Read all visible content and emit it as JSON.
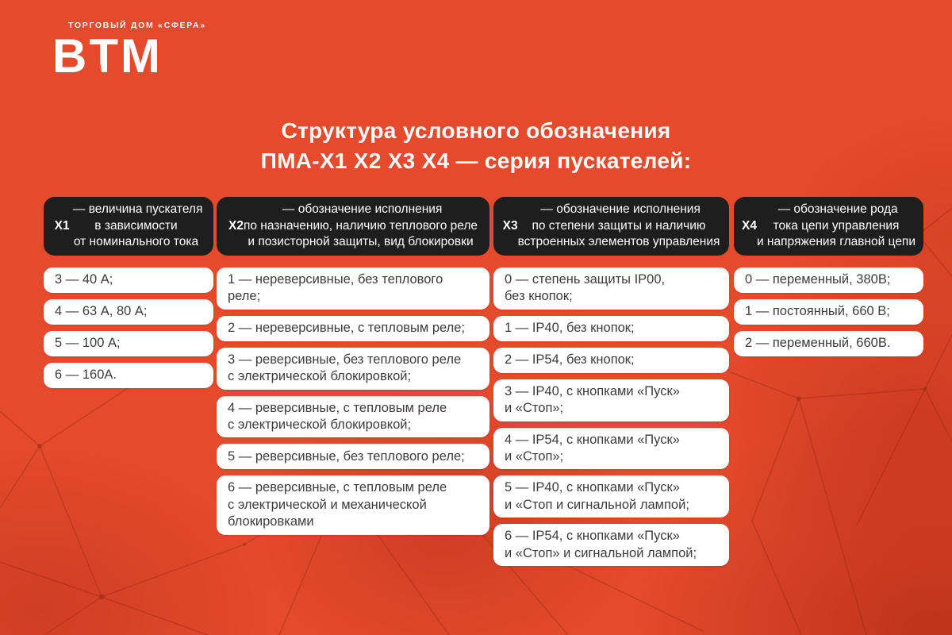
{
  "logo": {
    "tagline": "ТОРГОВЫЙ ДОМ «СФЕРА»",
    "brand": "ВТМ",
    "brand_letters": [
      "В",
      "Т",
      "М"
    ]
  },
  "title": {
    "line1": "Структура условного обозначения",
    "line2": "ПМА-Х1 Х2 Х3 Х4 — серия пускателей:"
  },
  "colors": {
    "background": "#E54A2C",
    "header_panel": "#1E1E1E",
    "item_panel": "#FFFFFF",
    "item_text": "#3C3C3C",
    "text_on_dark": "#FFFFFF",
    "pattern_line": "#8F2710"
  },
  "columns": [
    {
      "code": "Х1",
      "header": " — величина пускателя\nв зависимости\nот номинального тока",
      "items": [
        "3 — 40 А;",
        "4 — 63 А, 80 А;",
        "5 — 100 А;",
        "6 — 160А."
      ]
    },
    {
      "code": "Х2",
      "header": " — обозначение исполнения\nпо назначению, наличию теплового реле\nи позисторной защиты, вид блокировки",
      "items": [
        "1 — нереверсивные, без теплового реле;",
        "2 — нереверсивные, с тепловым реле;",
        "3 — реверсивные, без теплового реле\nс электрической блокировкой;",
        "4 — реверсивные, с тепловым реле\nс электрической блокировкой;",
        "5 — реверсивные, без теплового реле;",
        "6 — реверсивные, с тепловым реле\nс электрической и механической\nблокировками"
      ]
    },
    {
      "code": "Х3",
      "header": " — обозначение исполнения\nпо степени защиты и наличию\nвстроенных элементов управления",
      "items": [
        "0 — степень защиты IP00,\nбез кнопок;",
        "1 — IP40, без кнопок;",
        "2 — IP54, без кнопок;",
        "3 — IP40, с кнопками «Пуск»\nи «Стоп»;",
        "4 — IP54, с кнопками «Пуск»\nи «Стоп»;",
        "5 — IP40, с кнопками «Пуск»\nи «Стоп и сигнальной лампой;",
        "6 — IP54, с кнопками «Пуск»\nи «Стоп» и сигнальной лампой;"
      ]
    },
    {
      "code": "Х4",
      "header": " — обозначение рода\nтока цепи управления\nи напряжения главной цепи",
      "items": [
        "0 — переменный, 380В;",
        "1 — постоянный, 660 В;",
        "2 — переменный, 660В."
      ]
    }
  ]
}
